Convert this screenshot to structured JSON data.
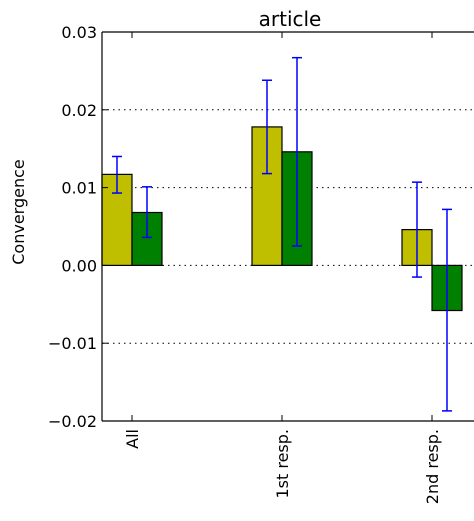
{
  "chart_data": {
    "type": "bar",
    "title": "article",
    "xlabel": "",
    "ylabel": "Convergence",
    "categories": [
      "All",
      "1st resp.",
      "2nd resp."
    ],
    "ylim": [
      -0.02,
      0.03
    ],
    "yticks": [
      -0.02,
      -0.01,
      0.0,
      0.01,
      0.02,
      0.03
    ],
    "ytick_labels": [
      "−0.02",
      "−0.01",
      "0.00",
      "0.01",
      "0.02",
      "0.03"
    ],
    "grid": "horizontal dotted",
    "legend": "none",
    "series": [
      {
        "color": "#bfbf00",
        "values": [
          0.0117,
          0.0178,
          0.0046
        ],
        "error_low": [
          0.0093,
          0.0118,
          -0.0015
        ],
        "error_high": [
          0.014,
          0.0238,
          0.0107
        ]
      },
      {
        "color": "#008000",
        "values": [
          0.0068,
          0.0146,
          -0.0058
        ],
        "error_low": [
          0.0036,
          0.0025,
          -0.0187
        ],
        "error_high": [
          0.0101,
          0.0267,
          0.0072
        ]
      }
    ],
    "error_bar_color": "#0000ff"
  }
}
